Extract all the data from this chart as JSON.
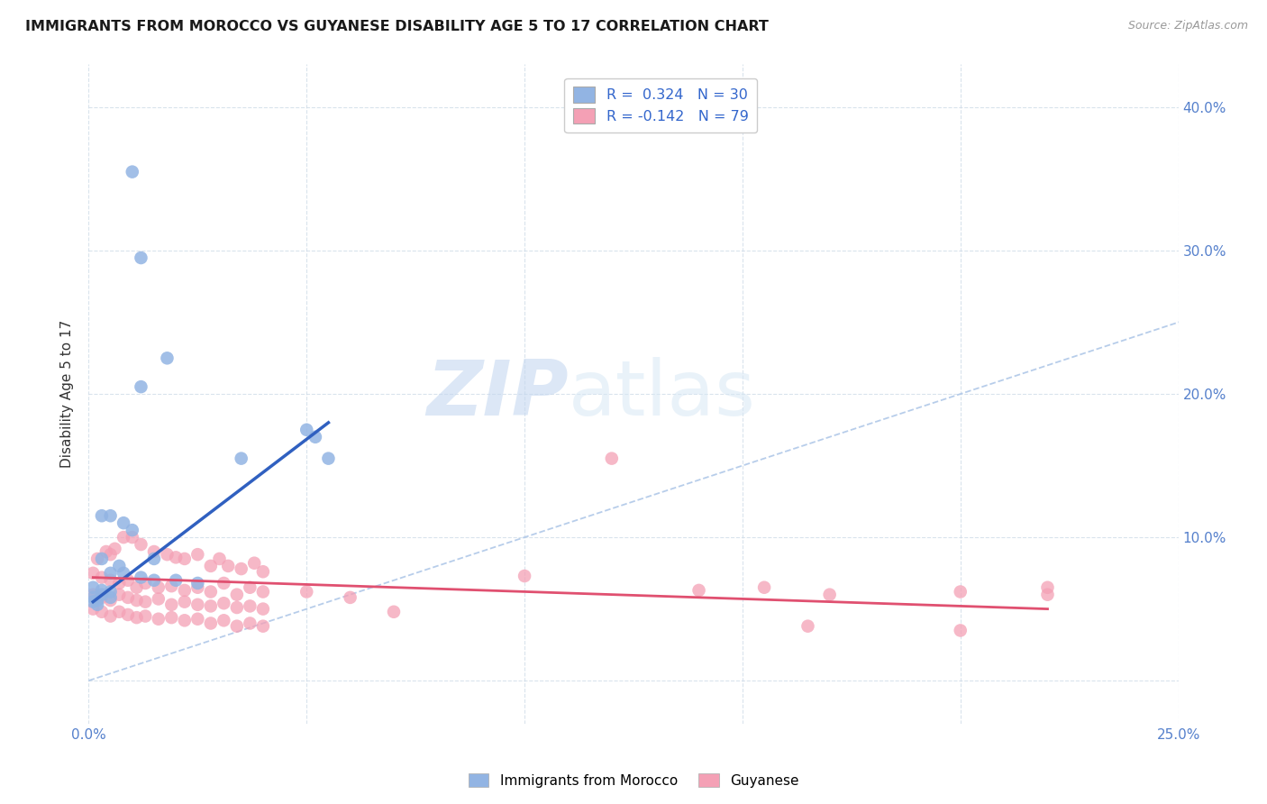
{
  "title": "IMMIGRANTS FROM MOROCCO VS GUYANESE DISABILITY AGE 5 TO 17 CORRELATION CHART",
  "source": "Source: ZipAtlas.com",
  "ylabel": "Disability Age 5 to 17",
  "xlim": [
    0.0,
    25.0
  ],
  "ylim": [
    -3.0,
    43.0
  ],
  "legend_blue_r": "0.324",
  "legend_blue_n": "30",
  "legend_pink_r": "-0.142",
  "legend_pink_n": "79",
  "blue_color": "#92b4e3",
  "pink_color": "#f4a0b5",
  "trendline_blue_color": "#3060c0",
  "trendline_pink_color": "#e05070",
  "diagonal_color": "#b0c8e8",
  "watermark_zip": "ZIP",
  "watermark_atlas": "atlas",
  "blue_points": [
    [
      1.0,
      35.5
    ],
    [
      1.2,
      29.5
    ],
    [
      1.8,
      22.5
    ],
    [
      1.2,
      20.5
    ],
    [
      5.0,
      17.5
    ],
    [
      5.2,
      17.0
    ],
    [
      5.5,
      15.5
    ],
    [
      3.5,
      15.5
    ],
    [
      0.3,
      11.5
    ],
    [
      0.5,
      11.5
    ],
    [
      0.8,
      11.0
    ],
    [
      1.0,
      10.5
    ],
    [
      1.5,
      8.5
    ],
    [
      0.3,
      8.5
    ],
    [
      0.7,
      8.0
    ],
    [
      0.5,
      7.5
    ],
    [
      0.8,
      7.5
    ],
    [
      1.2,
      7.2
    ],
    [
      1.5,
      7.0
    ],
    [
      2.0,
      7.0
    ],
    [
      2.5,
      6.8
    ],
    [
      0.1,
      6.5
    ],
    [
      0.3,
      6.3
    ],
    [
      0.5,
      6.2
    ],
    [
      0.3,
      6.0
    ],
    [
      0.1,
      5.8
    ],
    [
      0.5,
      5.8
    ],
    [
      0.2,
      5.6
    ],
    [
      0.1,
      5.5
    ],
    [
      0.2,
      5.3
    ]
  ],
  "pink_points": [
    [
      0.2,
      8.5
    ],
    [
      0.4,
      9.0
    ],
    [
      0.5,
      8.8
    ],
    [
      0.6,
      9.2
    ],
    [
      0.8,
      10.0
    ],
    [
      1.0,
      10.0
    ],
    [
      1.2,
      9.5
    ],
    [
      1.5,
      9.0
    ],
    [
      1.8,
      8.8
    ],
    [
      2.0,
      8.6
    ],
    [
      2.2,
      8.5
    ],
    [
      2.5,
      8.8
    ],
    [
      2.8,
      8.0
    ],
    [
      3.0,
      8.5
    ],
    [
      3.2,
      8.0
    ],
    [
      3.5,
      7.8
    ],
    [
      3.8,
      8.2
    ],
    [
      4.0,
      7.6
    ],
    [
      0.1,
      7.5
    ],
    [
      0.3,
      7.2
    ],
    [
      0.5,
      7.0
    ],
    [
      0.7,
      6.8
    ],
    [
      0.9,
      7.0
    ],
    [
      1.1,
      6.5
    ],
    [
      1.3,
      6.8
    ],
    [
      1.6,
      6.5
    ],
    [
      1.9,
      6.6
    ],
    [
      2.2,
      6.3
    ],
    [
      2.5,
      6.5
    ],
    [
      2.8,
      6.2
    ],
    [
      3.1,
      6.8
    ],
    [
      3.4,
      6.0
    ],
    [
      3.7,
      6.5
    ],
    [
      4.0,
      6.2
    ],
    [
      0.1,
      6.0
    ],
    [
      0.3,
      5.8
    ],
    [
      0.5,
      5.6
    ],
    [
      0.7,
      6.0
    ],
    [
      0.9,
      5.8
    ],
    [
      1.1,
      5.6
    ],
    [
      1.3,
      5.5
    ],
    [
      1.6,
      5.7
    ],
    [
      1.9,
      5.3
    ],
    [
      2.2,
      5.5
    ],
    [
      2.5,
      5.3
    ],
    [
      2.8,
      5.2
    ],
    [
      3.1,
      5.4
    ],
    [
      3.4,
      5.1
    ],
    [
      3.7,
      5.2
    ],
    [
      4.0,
      5.0
    ],
    [
      0.1,
      5.0
    ],
    [
      0.3,
      4.8
    ],
    [
      0.5,
      4.5
    ],
    [
      0.7,
      4.8
    ],
    [
      0.9,
      4.6
    ],
    [
      1.1,
      4.4
    ],
    [
      1.3,
      4.5
    ],
    [
      1.6,
      4.3
    ],
    [
      1.9,
      4.4
    ],
    [
      2.2,
      4.2
    ],
    [
      2.5,
      4.3
    ],
    [
      2.8,
      4.0
    ],
    [
      3.1,
      4.2
    ],
    [
      3.4,
      3.8
    ],
    [
      3.7,
      4.0
    ],
    [
      4.0,
      3.8
    ],
    [
      10.0,
      7.3
    ],
    [
      12.0,
      15.5
    ],
    [
      14.0,
      6.3
    ],
    [
      15.5,
      6.5
    ],
    [
      17.0,
      6.0
    ],
    [
      20.0,
      6.2
    ],
    [
      22.0,
      6.0
    ],
    [
      16.5,
      3.8
    ],
    [
      20.0,
      3.5
    ],
    [
      22.0,
      6.5
    ],
    [
      5.0,
      6.2
    ],
    [
      6.0,
      5.8
    ],
    [
      7.0,
      4.8
    ]
  ],
  "blue_trendline_x": [
    0.1,
    5.5
  ],
  "blue_trendline_y": [
    5.5,
    18.0
  ],
  "pink_trendline_x": [
    0.1,
    22.0
  ],
  "pink_trendline_y": [
    7.2,
    5.0
  ]
}
